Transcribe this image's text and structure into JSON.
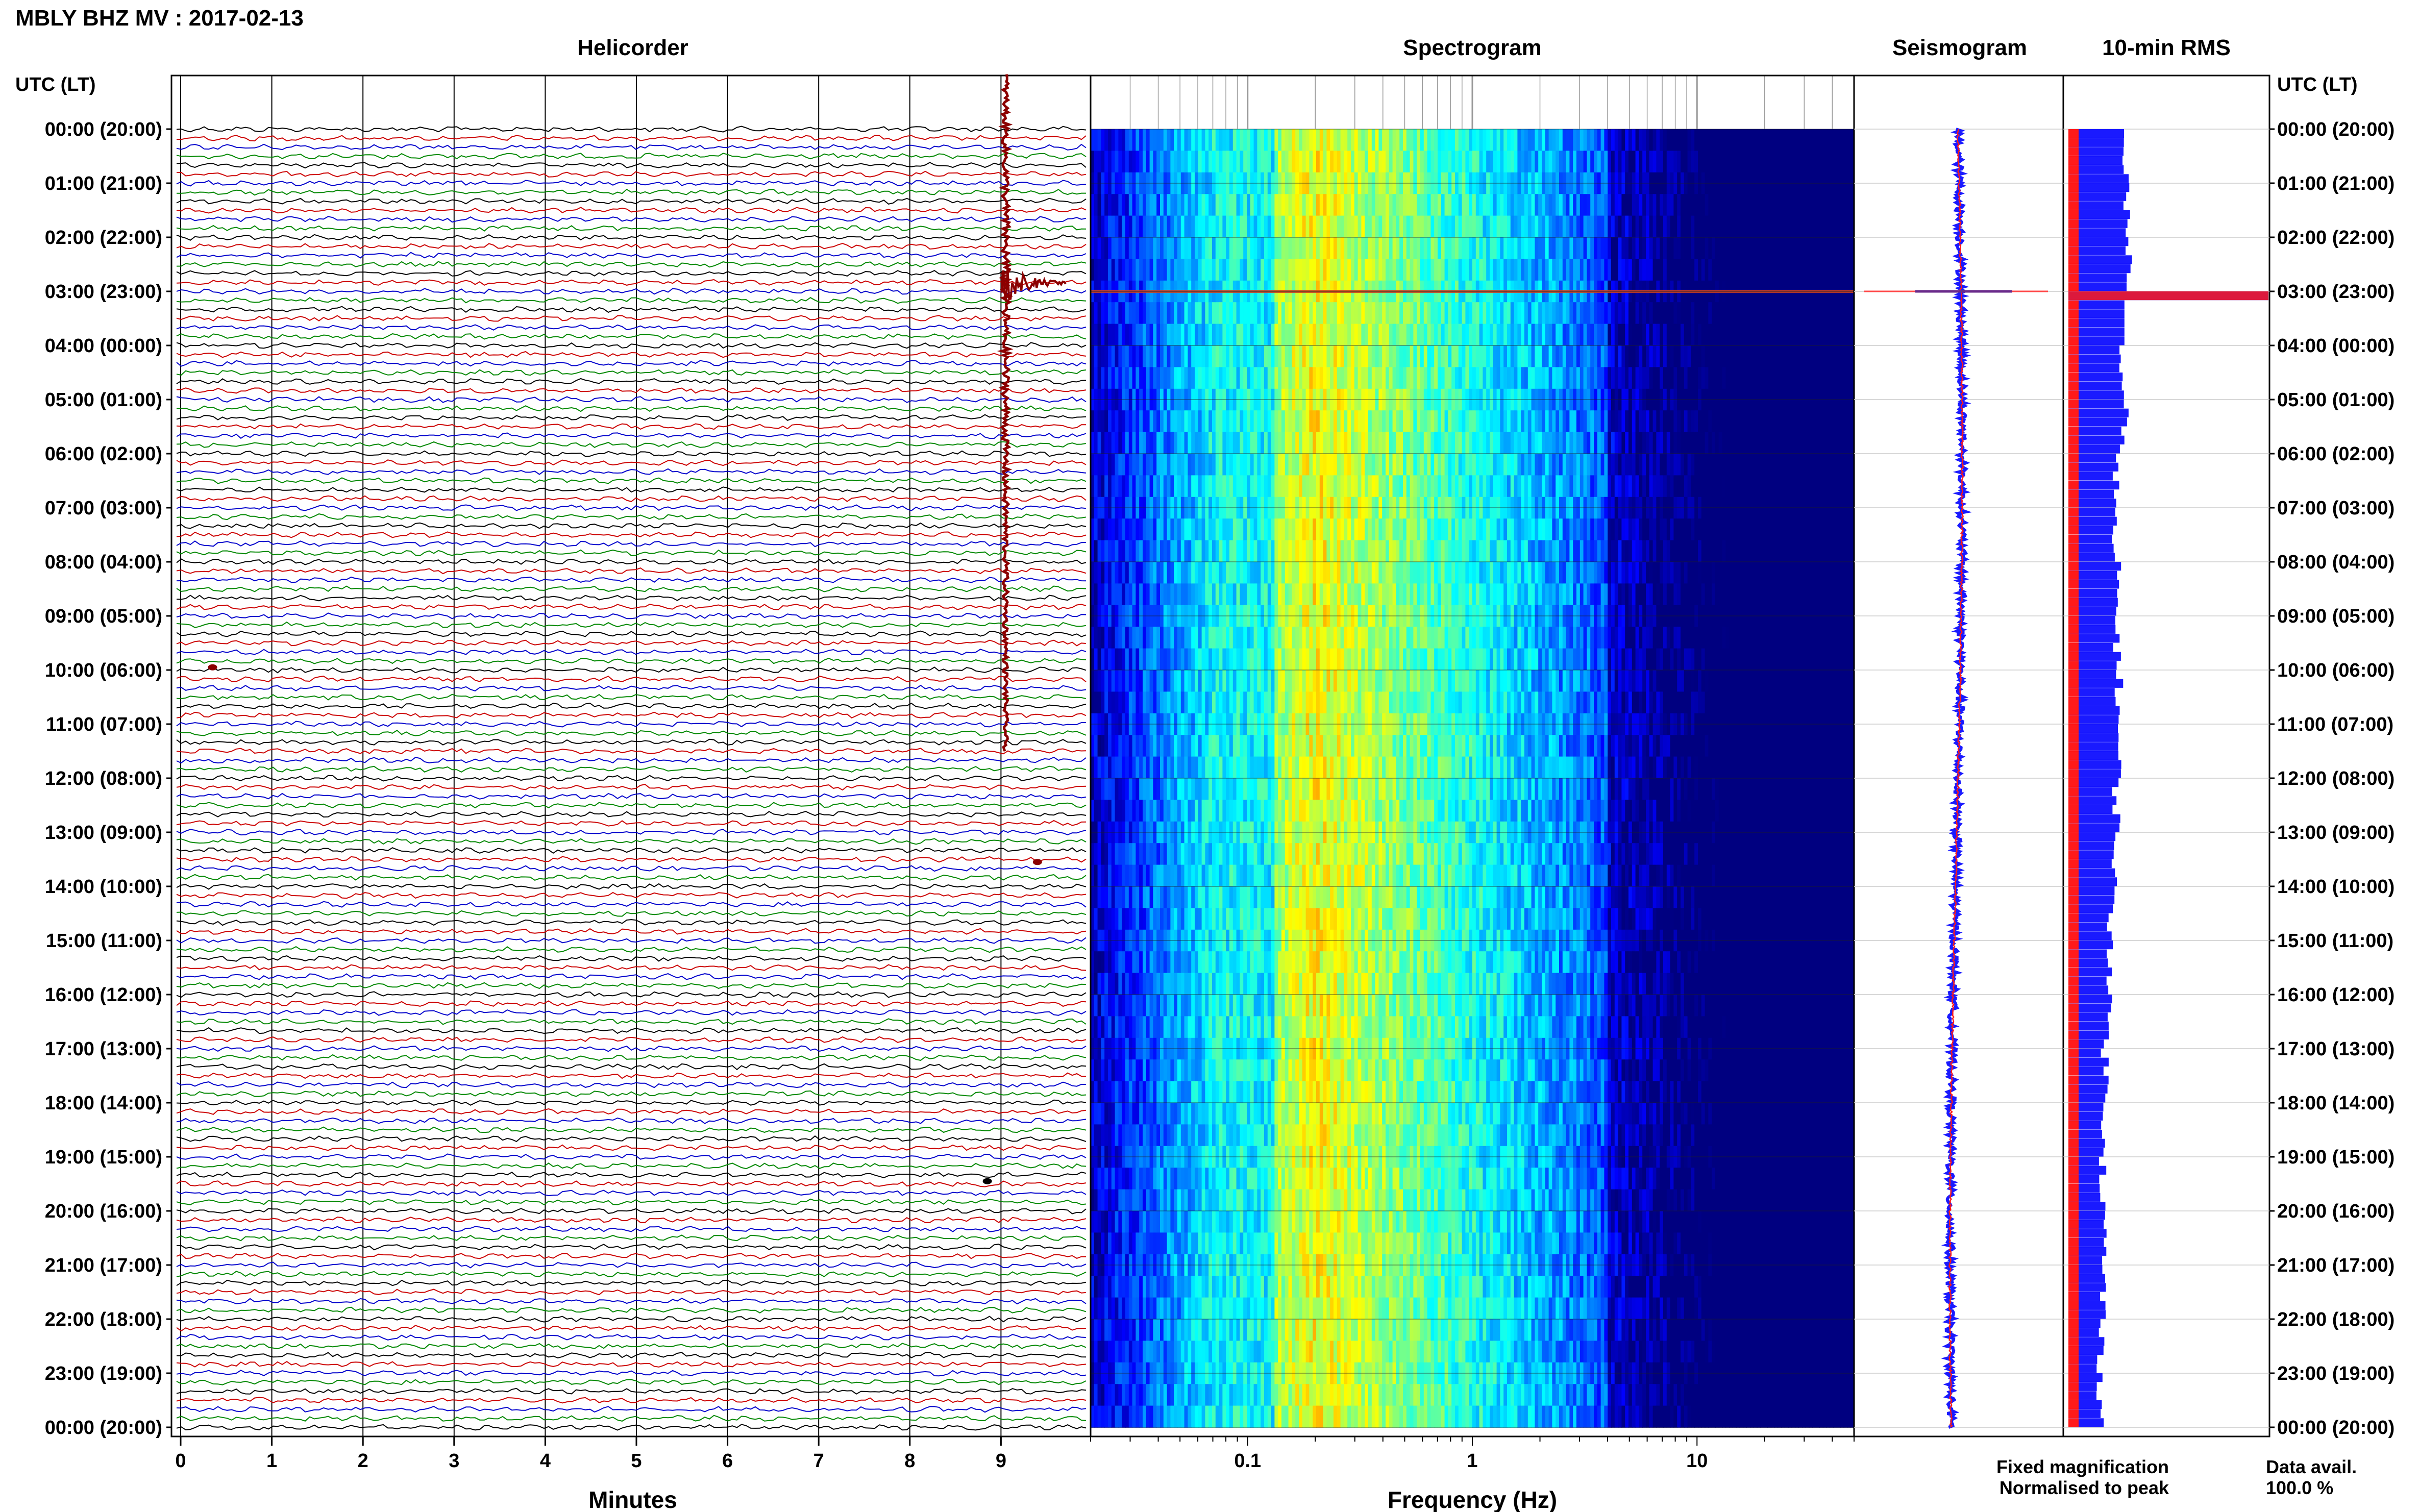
{
  "header": {
    "title": "MBLY BHZ MV : 2017-02-13",
    "left_axis_title": "UTC (LT)",
    "right_axis_title": "UTC (LT)"
  },
  "panels": {
    "helicorder": {
      "title": "Helicorder",
      "xlabel": "Minutes"
    },
    "spectrogram": {
      "title": "Spectrogram",
      "xlabel": "Frequency (Hz)"
    },
    "seismogram": {
      "title": "Seismogram"
    },
    "rms": {
      "title": "10-min RMS"
    }
  },
  "legend": {
    "fixed": "Fixed magnification",
    "normalised": "Normalised to peak",
    "fixed_color": "#1a1aff",
    "normalised_color": "#ff1a1a"
  },
  "data_availability": {
    "label": "Data avail.",
    "value": "100.0 %"
  },
  "time_labels": [
    "00:00 (20:00)",
    "01:00 (21:00)",
    "02:00 (22:00)",
    "03:00 (23:00)",
    "04:00 (00:00)",
    "05:00 (01:00)",
    "06:00 (02:00)",
    "07:00 (03:00)",
    "08:00 (04:00)",
    "09:00 (05:00)",
    "10:00 (06:00)",
    "11:00 (07:00)",
    "12:00 (08:00)",
    "13:00 (09:00)",
    "14:00 (10:00)",
    "15:00 (11:00)",
    "16:00 (12:00)",
    "17:00 (13:00)",
    "18:00 (14:00)",
    "19:00 (15:00)",
    "20:00 (16:00)",
    "21:00 (17:00)",
    "22:00 (18:00)",
    "23:00 (19:00)",
    "00:00 (20:00)"
  ],
  "chart_data": [
    {
      "type": "line",
      "panel": "helicorder",
      "title": "Helicorder",
      "xlabel": "Minutes",
      "x_ticks": [
        "0",
        "1",
        "2",
        "3",
        "4",
        "5",
        "6",
        "7",
        "8",
        "9"
      ],
      "xlim": [
        0,
        10
      ],
      "lines_per_hour": 6,
      "trace_colors": [
        "#000000",
        "#cc0000",
        "#0000cc",
        "#008800"
      ],
      "events": [
        {
          "label": "large event",
          "hour_start": 0.0,
          "hour_end": 11.5,
          "minute": 9.05,
          "peak_hour": 2.85,
          "color": "#8b0000"
        },
        {
          "label": "spike",
          "hour": 9.95,
          "minute": 0.35,
          "color": "#8b0000"
        },
        {
          "label": "spike",
          "hour": 13.55,
          "minute": 9.4,
          "color": "#8b0000"
        },
        {
          "label": "spike",
          "hour": 19.45,
          "minute": 8.85,
          "color": "#000000"
        }
      ]
    },
    {
      "type": "heatmap",
      "panel": "spectrogram",
      "title": "Spectrogram",
      "xlabel": "Frequency (Hz)",
      "x_scale": "log",
      "xlim": [
        0.02,
        50
      ],
      "x_ticks": [
        "0.1",
        "1",
        "10"
      ],
      "peak_frequency_hz": 0.2,
      "colormap": "jet",
      "event_hour": 3.0
    },
    {
      "type": "line",
      "panel": "seismogram",
      "title": "Seismogram",
      "series": [
        {
          "name": "Fixed magnification",
          "color": "#1a1aff"
        },
        {
          "name": "Normalised to peak",
          "color": "#ff1a1a"
        }
      ],
      "event_hour": 3.0
    },
    {
      "type": "bar",
      "panel": "rms",
      "title": "10-min RMS",
      "orientation": "horizontal",
      "interval_minutes": 10,
      "hours": [
        0,
        1,
        2,
        3,
        4,
        5,
        6,
        7,
        8,
        9,
        10,
        11,
        12,
        13,
        14,
        15,
        16,
        17,
        18,
        19,
        20,
        21,
        22,
        23
      ],
      "rms_relative": [
        0.5,
        0.52,
        0.54,
        1.0,
        0.46,
        0.5,
        0.42,
        0.4,
        0.43,
        0.44,
        0.45,
        0.44,
        0.43,
        0.42,
        0.38,
        0.38,
        0.35,
        0.33,
        0.33,
        0.31,
        0.31,
        0.31,
        0.29,
        0.29
      ],
      "series": [
        {
          "name": "Fixed magnification",
          "color": "#1a1aff"
        },
        {
          "name": "Normalised to peak",
          "color": "#ff1a1a"
        }
      ]
    }
  ]
}
